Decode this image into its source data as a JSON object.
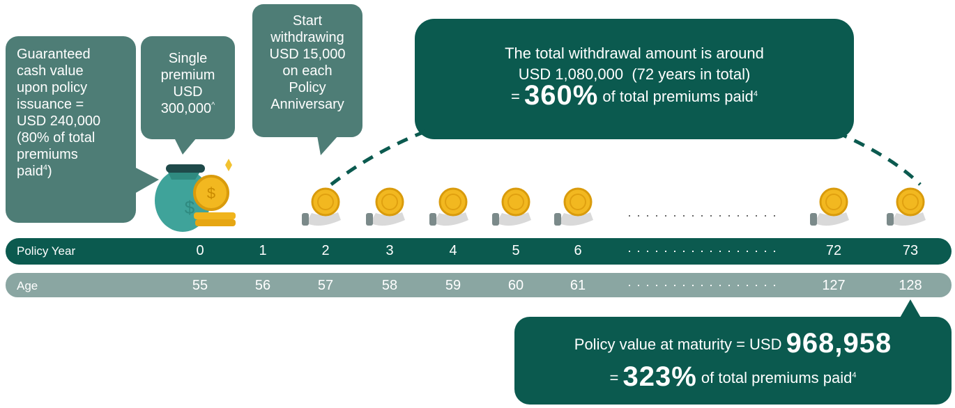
{
  "callouts": {
    "guaranteed_cash_value": {
      "lines": [
        "Guaranteed",
        "cash value",
        "upon policy",
        "issuance =",
        "USD 240,000",
        "(80% of total",
        "premiums",
        "paid"
      ],
      "superscript": "4",
      "closing": ")"
    },
    "single_premium": {
      "lines": [
        "Single",
        "premium",
        "USD",
        "300,000"
      ],
      "superscript": "^"
    },
    "withdrawal_start": {
      "lines": [
        "Start",
        "withdrawing",
        "USD 15,000",
        "on each",
        "Policy",
        "Anniversary"
      ]
    },
    "total_withdrawal": {
      "line1": "The total withdrawal amount is around",
      "line2": "USD 1,080,000  (72 years in total)",
      "equals": "=",
      "highlight": "360%",
      "suffix": "of total premiums paid",
      "superscript": "4"
    },
    "maturity_value": {
      "prefix": "Policy value at maturity = USD",
      "highlight": "968,958",
      "equals": "=",
      "percentage": "323%",
      "suffix": "of total premiums paid",
      "superscript": "4"
    }
  },
  "timeline": {
    "policy_year": {
      "label": "Policy Year",
      "values": [
        0,
        1,
        2,
        3,
        4,
        5,
        6,
        72,
        73
      ]
    },
    "age": {
      "label": "Age",
      "values": [
        55,
        56,
        57,
        58,
        59,
        60,
        61,
        127,
        128
      ]
    }
  }
}
